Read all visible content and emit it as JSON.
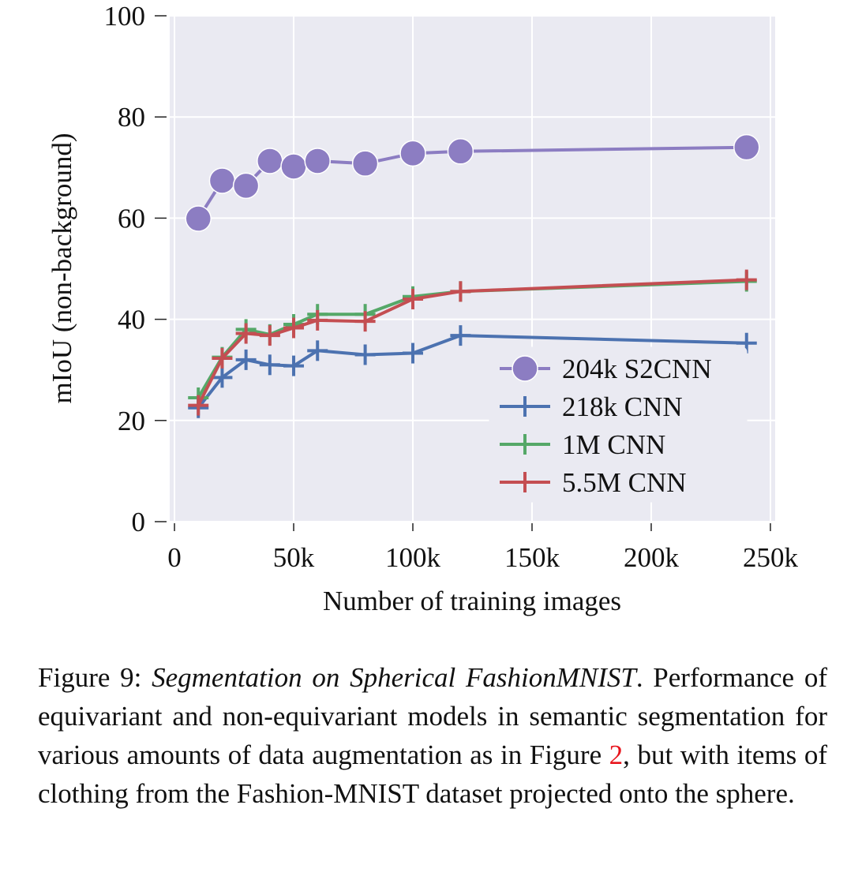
{
  "chart_data": {
    "type": "line",
    "xlabel": "Number of training images",
    "ylabel": "mIoU (non-background)",
    "xlim": [
      -2000,
      252000
    ],
    "ylim": [
      0,
      100
    ],
    "x_ticks": [
      {
        "value": 0,
        "label": "0"
      },
      {
        "value": 50000,
        "label": "50k"
      },
      {
        "value": 100000,
        "label": "100k"
      },
      {
        "value": 150000,
        "label": "150k"
      },
      {
        "value": 200000,
        "label": "200k"
      },
      {
        "value": 250000,
        "label": "250k"
      }
    ],
    "y_ticks": [
      {
        "value": 0,
        "label": "0"
      },
      {
        "value": 20,
        "label": "20"
      },
      {
        "value": 40,
        "label": "40"
      },
      {
        "value": 60,
        "label": "60"
      },
      {
        "value": 80,
        "label": "80"
      },
      {
        "value": 100,
        "label": "100"
      }
    ],
    "grid": true,
    "legend_position": "lower-right",
    "series": [
      {
        "name": "204k S2CNN",
        "color": "#8c7dc2",
        "marker": "circle",
        "x": [
          10000,
          20000,
          30000,
          40000,
          50000,
          60000,
          80000,
          100000,
          120000,
          240000
        ],
        "y": [
          59.9,
          67.4,
          66.4,
          71.3,
          70.2,
          71.3,
          70.8,
          72.8,
          73.2,
          74.0
        ]
      },
      {
        "name": "218k CNN",
        "color": "#4c72b0",
        "marker": "plus",
        "x": [
          10000,
          20000,
          30000,
          40000,
          50000,
          60000,
          80000,
          100000,
          120000,
          240000
        ],
        "y": [
          22.5,
          28.5,
          32.0,
          31.0,
          30.8,
          33.8,
          33.0,
          33.3,
          36.8,
          35.3
        ]
      },
      {
        "name": "1M CNN",
        "color": "#55a868",
        "marker": "plus",
        "x": [
          10000,
          20000,
          30000,
          40000,
          50000,
          60000,
          80000,
          100000,
          120000,
          240000
        ],
        "y": [
          24.5,
          32.5,
          38.0,
          37.0,
          39.0,
          41.0,
          41.0,
          44.5,
          45.5,
          47.5
        ]
      },
      {
        "name": "5.5M CNN",
        "color": "#c44e52",
        "marker": "plus",
        "x": [
          10000,
          20000,
          30000,
          40000,
          50000,
          60000,
          80000,
          100000,
          120000,
          240000
        ],
        "y": [
          23.0,
          32.3,
          37.2,
          36.8,
          38.3,
          39.8,
          39.6,
          44.0,
          45.5,
          47.8
        ]
      }
    ]
  },
  "caption": {
    "label": "Figure 9:",
    "title": "Segmentation on Spherical FashionMNIST",
    "text1": ". Performance of equivariant and non-equivariant models in semantic segmentation for various amounts of data augmentation as in Figure ",
    "ref": "2",
    "text2": ", but with items of clothing from the Fashion-MNIST dataset projected onto the sphere."
  }
}
